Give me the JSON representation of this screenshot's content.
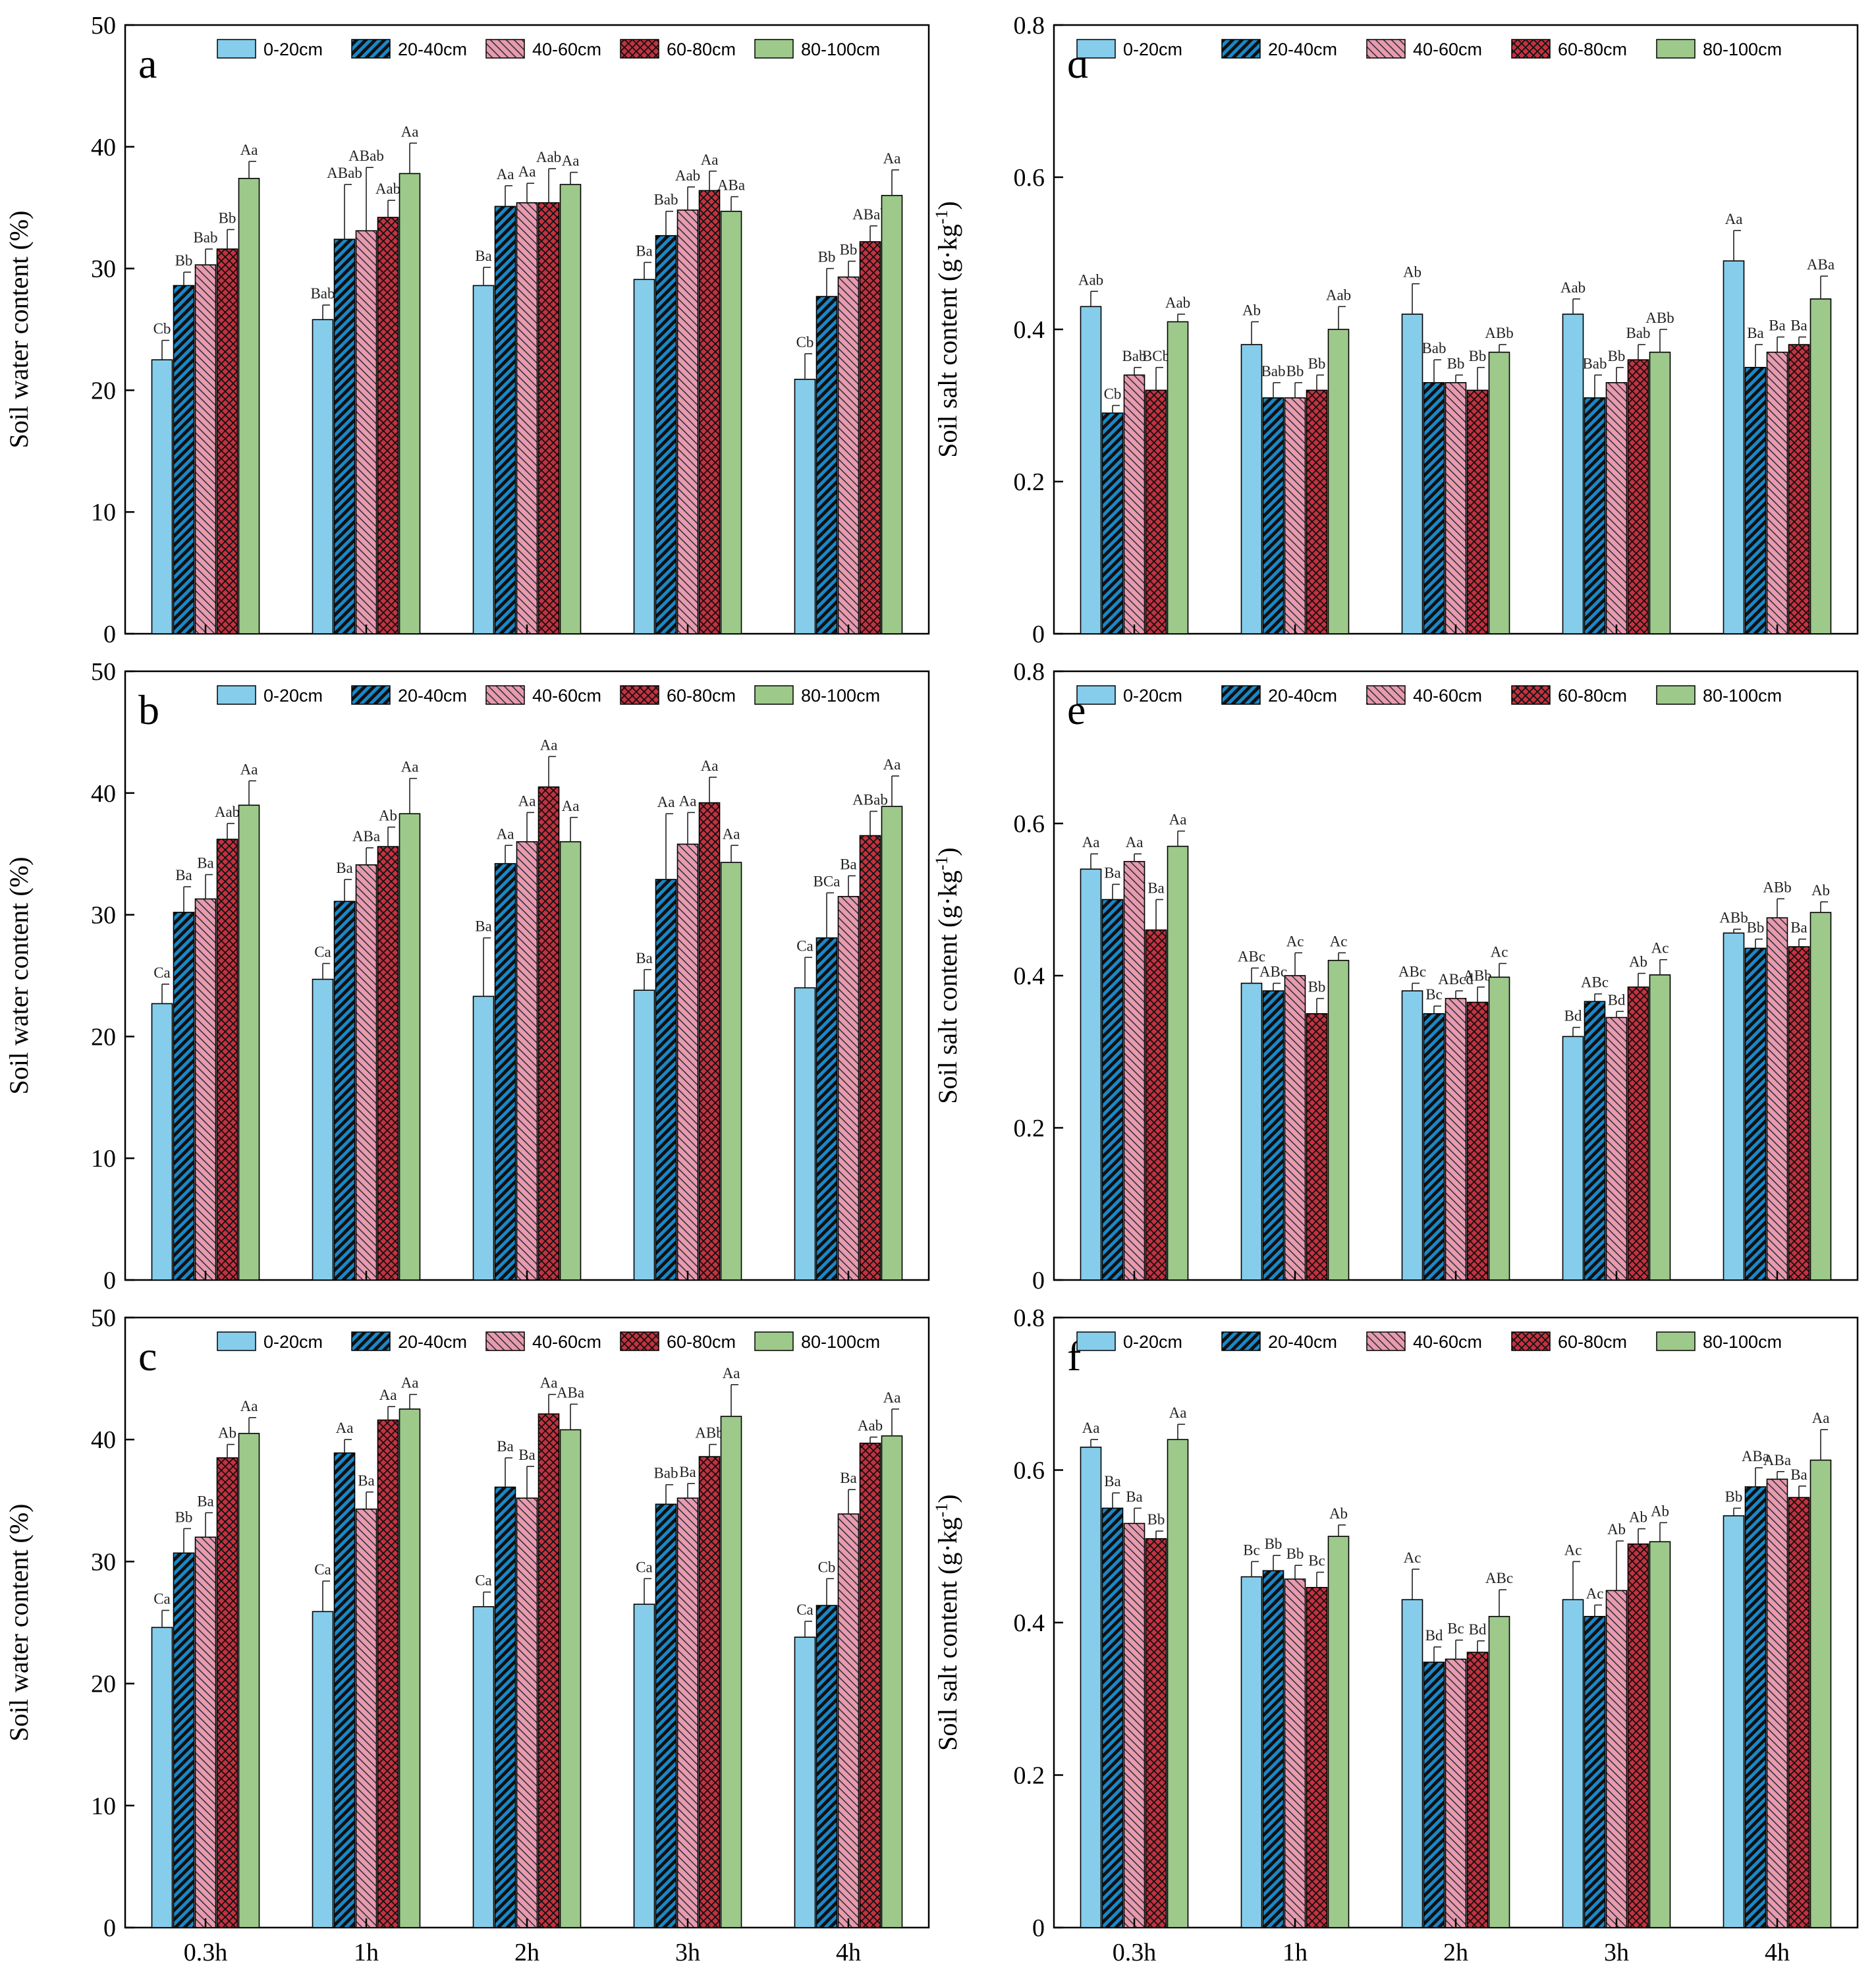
{
  "colors": {
    "d0_20": "#86CDEB",
    "d20_40": "#1A88C9",
    "d40_60": "#E79AB0",
    "d60_80": "#C4313F",
    "d80_100": "#9DC98A"
  },
  "chart_data": [
    {
      "type": "bar",
      "panel": "a",
      "ylabel": "Soil water content (%)",
      "ylim": [
        0,
        50
      ],
      "yticks": [
        "0",
        "10",
        "20",
        "30",
        "40",
        "50"
      ],
      "categories": [
        "0.3h",
        "1h",
        "2h",
        "3h",
        "4h"
      ],
      "legend": [
        "0-20cm",
        "20-40cm",
        "40-60cm",
        "60-80cm",
        "80-100cm"
      ],
      "series": [
        {
          "name": "0-20cm",
          "values": [
            22.5,
            25.8,
            28.6,
            29.1,
            20.9
          ],
          "errors": [
            1.6,
            1.2,
            1.5,
            1.4,
            2.1
          ],
          "labels": [
            "Cb",
            "Bab",
            "Ba",
            "Ba",
            "Cb"
          ]
        },
        {
          "name": "20-40cm",
          "values": [
            28.6,
            32.4,
            35.1,
            32.7,
            27.7
          ],
          "errors": [
            1.1,
            4.5,
            1.7,
            2.0,
            2.3
          ],
          "labels": [
            "Bb",
            "ABab",
            "Aa",
            "Bab",
            "Bb"
          ]
        },
        {
          "name": "40-60cm",
          "values": [
            30.3,
            33.1,
            35.4,
            34.8,
            29.3
          ],
          "errors": [
            1.3,
            5.2,
            1.6,
            1.9,
            1.3
          ],
          "labels": [
            "Bab",
            "ABab",
            "Aa",
            "Aab",
            "Bb"
          ]
        },
        {
          "name": "60-80cm",
          "values": [
            31.6,
            34.2,
            35.4,
            36.4,
            32.2
          ],
          "errors": [
            1.6,
            1.4,
            2.8,
            1.6,
            1.3
          ],
          "labels": [
            "Bb",
            "Aab",
            "Aab",
            "Aa",
            "ABab"
          ]
        },
        {
          "name": "80-100cm",
          "values": [
            37.4,
            37.8,
            36.9,
            34.7,
            36.0
          ],
          "errors": [
            1.4,
            2.5,
            1.0,
            1.2,
            2.1
          ],
          "labels": [
            "Aa",
            "Aa",
            "Aa",
            "ABa",
            "Aa"
          ]
        }
      ]
    },
    {
      "type": "bar",
      "panel": "b",
      "ylabel": "Soil water content (%)",
      "ylim": [
        0,
        50
      ],
      "yticks": [
        "0",
        "10",
        "20",
        "30",
        "40",
        "50"
      ],
      "categories": [
        "0.3h",
        "1h",
        "2h",
        "3h",
        "4h"
      ],
      "legend": [
        "0-20cm",
        "20-40cm",
        "40-60cm",
        "60-80cm",
        "80-100cm"
      ],
      "series": [
        {
          "name": "0-20cm",
          "values": [
            22.7,
            24.7,
            23.3,
            23.8,
            24.0
          ],
          "errors": [
            1.6,
            1.3,
            4.8,
            1.7,
            2.5
          ],
          "labels": [
            "Ca",
            "Ca",
            "Ba",
            "Ba",
            "Ca"
          ]
        },
        {
          "name": "20-40cm",
          "values": [
            30.2,
            31.1,
            34.2,
            32.9,
            28.1
          ],
          "errors": [
            2.1,
            1.8,
            1.5,
            5.4,
            3.7
          ],
          "labels": [
            "Ba",
            "Ba",
            "Aa",
            "Aa",
            "BCa"
          ]
        },
        {
          "name": "40-60cm",
          "values": [
            31.3,
            34.1,
            36.0,
            35.8,
            31.5
          ],
          "errors": [
            2.0,
            1.4,
            2.4,
            2.6,
            1.7
          ],
          "labels": [
            "Ba",
            "ABa",
            "Aa",
            "Aa",
            "Ba"
          ]
        },
        {
          "name": "60-80cm",
          "values": [
            36.2,
            35.6,
            40.5,
            39.2,
            36.5
          ],
          "errors": [
            1.3,
            1.6,
            2.5,
            2.1,
            2.0
          ],
          "labels": [
            "Aab",
            "Ab",
            "Aa",
            "Aa",
            "ABab"
          ]
        },
        {
          "name": "80-100cm",
          "values": [
            39.0,
            38.3,
            36.0,
            34.3,
            38.9
          ],
          "errors": [
            2.0,
            2.9,
            2.0,
            1.4,
            2.5
          ],
          "labels": [
            "Aa",
            "Aa",
            "Aa",
            "Aa",
            "Aa"
          ]
        }
      ]
    },
    {
      "type": "bar",
      "panel": "c",
      "ylabel": "Soil water content (%)",
      "ylim": [
        0,
        50
      ],
      "yticks": [
        "0",
        "10",
        "20",
        "30",
        "40",
        "50"
      ],
      "categories": [
        "0.3h",
        "1h",
        "2h",
        "3h",
        "4h"
      ],
      "legend": [
        "0-20cm",
        "20-40cm",
        "40-60cm",
        "60-80cm",
        "80-100cm"
      ],
      "series": [
        {
          "name": "0-20cm",
          "values": [
            24.6,
            25.9,
            26.3,
            26.5,
            23.8
          ],
          "errors": [
            1.4,
            2.5,
            1.2,
            2.1,
            1.3
          ],
          "labels": [
            "Ca",
            "Ca",
            "Ca",
            "Ca",
            "Ca"
          ]
        },
        {
          "name": "20-40cm",
          "values": [
            30.7,
            38.9,
            36.1,
            34.7,
            26.4
          ],
          "errors": [
            2.0,
            1.1,
            2.4,
            1.6,
            2.2
          ],
          "labels": [
            "Bb",
            "Aa",
            "Ba",
            "Bab",
            "Cb"
          ]
        },
        {
          "name": "40-60cm",
          "values": [
            32.0,
            34.3,
            35.2,
            35.2,
            33.9
          ],
          "errors": [
            2.0,
            1.4,
            2.6,
            1.2,
            2.0
          ],
          "labels": [
            "Ba",
            "Ba",
            "Ba",
            "Ba",
            "Ba"
          ]
        },
        {
          "name": "60-80cm",
          "values": [
            38.5,
            41.6,
            42.1,
            38.6,
            39.7
          ],
          "errors": [
            1.1,
            1.1,
            1.6,
            1.0,
            0.5
          ],
          "labels": [
            "Ab",
            "Aa",
            "Aa",
            "ABb",
            "Aab"
          ]
        },
        {
          "name": "80-100cm",
          "values": [
            40.5,
            42.5,
            40.8,
            41.9,
            40.3
          ],
          "errors": [
            1.3,
            1.2,
            2.1,
            2.6,
            2.2
          ],
          "labels": [
            "Aa",
            "Aa",
            "ABa",
            "Aa",
            "Aa"
          ]
        }
      ]
    },
    {
      "type": "bar",
      "panel": "d",
      "ylabel": "Soil salt content (g·kg",
      "ylabel_sup": "-1",
      "ylabel_end": ")",
      "ylim": [
        0,
        0.8
      ],
      "yticks": [
        "0",
        "0.2",
        "0.4",
        "0.6",
        "0.8"
      ],
      "categories": [
        "0.3h",
        "1h",
        "2h",
        "3h",
        "4h"
      ],
      "legend": [
        "0-20cm",
        "20-40cm",
        "40-60cm",
        "60-80cm",
        "80-100cm"
      ],
      "series": [
        {
          "name": "0-20cm",
          "values": [
            0.43,
            0.38,
            0.42,
            0.42,
            0.49
          ],
          "errors": [
            0.02,
            0.03,
            0.04,
            0.02,
            0.04
          ],
          "labels": [
            "Aab",
            "Ab",
            "Ab",
            "Aab",
            "Aa"
          ]
        },
        {
          "name": "20-40cm",
          "values": [
            0.29,
            0.31,
            0.33,
            0.31,
            0.35
          ],
          "errors": [
            0.01,
            0.02,
            0.03,
            0.03,
            0.03
          ],
          "labels": [
            "Cb",
            "Bab",
            "Bab",
            "Bab",
            "Ba"
          ]
        },
        {
          "name": "40-60cm",
          "values": [
            0.34,
            0.31,
            0.33,
            0.33,
            0.37
          ],
          "errors": [
            0.01,
            0.02,
            0.01,
            0.02,
            0.02
          ],
          "labels": [
            "Bab",
            "Bb",
            "Bb",
            "Bb",
            "Ba"
          ]
        },
        {
          "name": "60-80cm",
          "values": [
            0.32,
            0.32,
            0.32,
            0.36,
            0.38
          ],
          "errors": [
            0.03,
            0.02,
            0.03,
            0.02,
            0.01
          ],
          "labels": [
            "BCb",
            "Bb",
            "Bb",
            "Bab",
            "Ba"
          ]
        },
        {
          "name": "80-100cm",
          "values": [
            0.41,
            0.4,
            0.37,
            0.37,
            0.44
          ],
          "errors": [
            0.01,
            0.03,
            0.01,
            0.03,
            0.03
          ],
          "labels": [
            "Aab",
            "Aab",
            "ABb",
            "ABb",
            "ABa"
          ]
        }
      ]
    },
    {
      "type": "bar",
      "panel": "e",
      "ylabel": "Soil salt content (g·kg",
      "ylabel_sup": "-1",
      "ylabel_end": ")",
      "ylim": [
        0,
        0.8
      ],
      "yticks": [
        "0",
        "0.2",
        "0.4",
        "0.6",
        "0.8"
      ],
      "categories": [
        "0.3h",
        "1h",
        "2h",
        "3h",
        "4h"
      ],
      "legend": [
        "0-20cm",
        "20-40cm",
        "40-60cm",
        "60-80cm",
        "80-100cm"
      ],
      "series": [
        {
          "name": "0-20cm",
          "values": [
            0.54,
            0.39,
            0.38,
            0.32,
            0.456
          ],
          "errors": [
            0.02,
            0.02,
            0.01,
            0.012,
            0.005
          ],
          "labels": [
            "Aa",
            "ABc",
            "ABc",
            "Bd",
            "ABb"
          ]
        },
        {
          "name": "20-40cm",
          "values": [
            0.5,
            0.38,
            0.35,
            0.366,
            0.436
          ],
          "errors": [
            0.02,
            0.01,
            0.01,
            0.01,
            0.012
          ],
          "labels": [
            "Ba",
            "ABc",
            "Bc",
            "ABc",
            "Bb"
          ]
        },
        {
          "name": "40-60cm",
          "values": [
            0.55,
            0.4,
            0.37,
            0.345,
            0.476
          ],
          "errors": [
            0.01,
            0.03,
            0.01,
            0.008,
            0.025
          ],
          "labels": [
            "Aa",
            "Ac",
            "ABcd",
            "Bd",
            "ABb"
          ]
        },
        {
          "name": "60-80cm",
          "values": [
            0.46,
            0.35,
            0.365,
            0.385,
            0.438
          ],
          "errors": [
            0.04,
            0.02,
            0.02,
            0.018,
            0.01
          ],
          "labels": [
            "Ba",
            "Bb",
            "ABb",
            "Ab",
            "Ba"
          ]
        },
        {
          "name": "80-100cm",
          "values": [
            0.57,
            0.42,
            0.398,
            0.401,
            0.483
          ],
          "errors": [
            0.02,
            0.01,
            0.018,
            0.02,
            0.014
          ],
          "labels": [
            "Aa",
            "Ac",
            "Ac",
            "Ac",
            "Ab"
          ]
        }
      ]
    },
    {
      "type": "bar",
      "panel": "f",
      "ylabel": "Soil salt content (g·kg",
      "ylabel_sup": "-1",
      "ylabel_end": ")",
      "ylim": [
        0,
        0.8
      ],
      "yticks": [
        "0",
        "0.2",
        "0.4",
        "0.6",
        "0.8"
      ],
      "categories": [
        "0.3h",
        "1h",
        "2h",
        "3h",
        "4h"
      ],
      "legend": [
        "0-20cm",
        "20-40cm",
        "40-60cm",
        "60-80cm",
        "80-100cm"
      ],
      "series": [
        {
          "name": "0-20cm",
          "values": [
            0.63,
            0.46,
            0.43,
            0.43,
            0.54
          ],
          "errors": [
            0.01,
            0.02,
            0.04,
            0.05,
            0.01
          ],
          "labels": [
            "Aa",
            "Bc",
            "Ac",
            "Ac",
            "Bb"
          ]
        },
        {
          "name": "20-40cm",
          "values": [
            0.55,
            0.468,
            0.348,
            0.408,
            0.578
          ],
          "errors": [
            0.02,
            0.02,
            0.02,
            0.015,
            0.025
          ],
          "labels": [
            "Ba",
            "Bb",
            "Bd",
            "Ac",
            "ABa"
          ]
        },
        {
          "name": "40-60cm",
          "values": [
            0.53,
            0.457,
            0.352,
            0.442,
            0.588
          ],
          "errors": [
            0.02,
            0.018,
            0.025,
            0.065,
            0.01
          ],
          "labels": [
            "Ba",
            "Bb",
            "Bc",
            "Ab",
            "ABa"
          ]
        },
        {
          "name": "60-80cm",
          "values": [
            0.51,
            0.446,
            0.361,
            0.503,
            0.564
          ],
          "errors": [
            0.01,
            0.02,
            0.015,
            0.02,
            0.015
          ],
          "labels": [
            "Bb",
            "Bc",
            "Bd",
            "Ab",
            "Ba"
          ]
        },
        {
          "name": "80-100cm",
          "values": [
            0.64,
            0.513,
            0.408,
            0.506,
            0.613
          ],
          "errors": [
            0.02,
            0.015,
            0.035,
            0.025,
            0.04
          ],
          "labels": [
            "Aa",
            "Ab",
            "ABc",
            "Ab",
            "Aa"
          ]
        }
      ]
    }
  ]
}
